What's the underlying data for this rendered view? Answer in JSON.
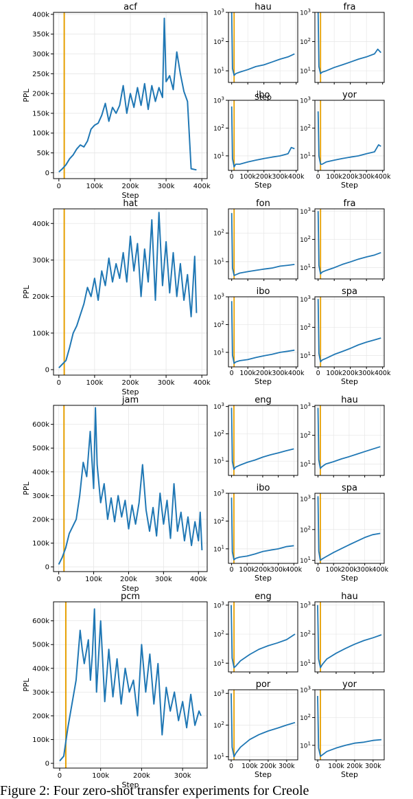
{
  "colors": {
    "line": "#1f77b4",
    "marker": "#e69f00",
    "grid": "#e6e6e6",
    "axis": "#000000"
  },
  "caption": "Figure 2: Four zero-shot transfer experiments for Creole",
  "groups": [
    {
      "main": {
        "title": "acf",
        "ylabel": "PPL",
        "xlabel": "Step",
        "xticks": [
          0,
          100000,
          200000,
          300000,
          400000
        ],
        "xticklabels": [
          "0",
          "100k",
          "200k",
          "300k",
          "400k"
        ],
        "yticks": [
          0,
          50000,
          100000,
          150000,
          200000,
          250000,
          300000,
          350000,
          400000
        ],
        "yticklabels": [
          "0",
          "50k",
          "100k",
          "150k",
          "200k",
          "250k",
          "300k",
          "350k",
          "400k"
        ]
      },
      "smalls": [
        {
          "title": "hau",
          "xlabel": "Step"
        },
        {
          "title": "fra",
          "xlabel": ""
        },
        {
          "title": "ibo",
          "xlabel": "Step"
        },
        {
          "title": "yor",
          "xlabel": "Step"
        }
      ]
    },
    {
      "main": {
        "title": "hat",
        "ylabel": "PPL",
        "xlabel": "Step",
        "xticks": [
          0,
          100000,
          200000,
          300000,
          400000
        ],
        "xticklabels": [
          "0",
          "100k",
          "200k",
          "300k",
          "400k"
        ],
        "yticks": [
          0,
          100000,
          200000,
          300000,
          400000
        ],
        "yticklabels": [
          "0",
          "100k",
          "200k",
          "300k",
          "400k"
        ]
      },
      "smalls": [
        {
          "title": "fon",
          "xlabel": ""
        },
        {
          "title": "fra",
          "xlabel": ""
        },
        {
          "title": "ibo",
          "xlabel": "Step"
        },
        {
          "title": "spa",
          "xlabel": "Step"
        }
      ]
    },
    {
      "main": {
        "title": "jam",
        "ylabel": "PPL",
        "xlabel": "Step",
        "xticks": [
          0,
          100000,
          200000,
          300000,
          400000
        ],
        "xticklabels": [
          "0",
          "100k",
          "200k",
          "300k",
          "400k"
        ],
        "yticks": [
          0,
          100000,
          200000,
          300000,
          400000,
          500000,
          600000
        ],
        "yticklabels": [
          "0",
          "100k",
          "200k",
          "300k",
          "400k",
          "500k",
          "600k"
        ]
      },
      "smalls": [
        {
          "title": "eng",
          "xlabel": ""
        },
        {
          "title": "hau",
          "xlabel": ""
        },
        {
          "title": "ibo",
          "xlabel": "Step"
        },
        {
          "title": "spa",
          "xlabel": "Step"
        }
      ]
    },
    {
      "main": {
        "title": "pcm",
        "ylabel": "PPL",
        "xlabel": "Step",
        "xticks": [
          0,
          100000,
          200000,
          300000
        ],
        "xticklabels": [
          "0",
          "100k",
          "200k",
          "300k"
        ],
        "yticks": [
          0,
          100000,
          200000,
          300000,
          400000,
          500000,
          600000
        ],
        "yticklabels": [
          "0",
          "100k",
          "200k",
          "300k",
          "400k",
          "500k",
          "600k"
        ]
      },
      "smalls": [
        {
          "title": "eng",
          "xlabel": ""
        },
        {
          "title": "hau",
          "xlabel": ""
        },
        {
          "title": "por",
          "xlabel": "Step"
        },
        {
          "title": "yor",
          "xlabel": "Step"
        }
      ]
    }
  ],
  "chart_data": [
    {
      "type": "line",
      "title": "acf",
      "xlabel": "Step",
      "ylabel": "PPL",
      "xlim": [
        -15000,
        415000
      ],
      "ylim": [
        -15000,
        405000
      ],
      "vline_x": 15000,
      "x": [
        0,
        10000,
        20000,
        30000,
        40000,
        50000,
        60000,
        70000,
        80000,
        90000,
        100000,
        110000,
        120000,
        130000,
        140000,
        150000,
        160000,
        170000,
        180000,
        190000,
        200000,
        210000,
        220000,
        230000,
        240000,
        250000,
        260000,
        270000,
        280000,
        290000,
        295000,
        300000,
        310000,
        320000,
        330000,
        340000,
        350000,
        360000,
        370000,
        385000
      ],
      "y": [
        2000,
        10000,
        20000,
        35000,
        45000,
        60000,
        70000,
        65000,
        80000,
        110000,
        120000,
        125000,
        145000,
        175000,
        130000,
        165000,
        150000,
        170000,
        220000,
        150000,
        200000,
        165000,
        215000,
        170000,
        225000,
        160000,
        220000,
        180000,
        215000,
        190000,
        390000,
        230000,
        245000,
        210000,
        305000,
        250000,
        205000,
        180000,
        10000,
        7000
      ]
    },
    {
      "type": "line",
      "title": "hau",
      "xlabel": "Step",
      "yscale": "log",
      "xlim": [
        -20000,
        410000
      ],
      "ylim": [
        4,
        1000
      ],
      "vline_x": 15000,
      "x": [
        0,
        5000,
        15000,
        25000,
        50000,
        100000,
        150000,
        200000,
        250000,
        300000,
        350000,
        390000
      ],
      "y": [
        1000,
        12,
        7,
        8,
        9,
        11,
        14,
        16,
        20,
        25,
        30,
        38
      ]
    },
    {
      "type": "line",
      "title": "fra",
      "yscale": "log",
      "xlim": [
        -20000,
        410000
      ],
      "ylim": [
        4,
        1000
      ],
      "vline_x": 15000,
      "x": [
        0,
        5000,
        15000,
        25000,
        50000,
        100000,
        150000,
        200000,
        250000,
        300000,
        350000,
        370000,
        390000
      ],
      "y": [
        1000,
        14,
        8,
        9,
        10,
        13,
        16,
        20,
        25,
        30,
        38,
        55,
        42
      ]
    },
    {
      "type": "line",
      "title": "ibo",
      "xlabel": "Step",
      "yscale": "log",
      "xlim": [
        -20000,
        410000
      ],
      "ylim": [
        3,
        1000
      ],
      "vline_x": 15000,
      "x": [
        0,
        5000,
        15000,
        25000,
        50000,
        100000,
        150000,
        200000,
        250000,
        300000,
        350000,
        370000,
        390000
      ],
      "y": [
        600,
        8,
        4,
        5,
        5,
        6,
        7,
        8,
        9,
        10,
        12,
        20,
        18
      ]
    },
    {
      "type": "line",
      "title": "yor",
      "xlabel": "Step",
      "yscale": "log",
      "xlim": [
        -20000,
        410000
      ],
      "ylim": [
        3,
        1000
      ],
      "vline_x": 15000,
      "x": [
        0,
        5000,
        15000,
        25000,
        50000,
        100000,
        150000,
        200000,
        250000,
        300000,
        350000,
        375000,
        390000
      ],
      "y": [
        400,
        10,
        5,
        5,
        6,
        7,
        8,
        9,
        10,
        12,
        14,
        25,
        22
      ]
    },
    {
      "type": "line",
      "title": "hat",
      "xlabel": "Step",
      "ylabel": "PPL",
      "xlim": [
        -15000,
        415000
      ],
      "ylim": [
        -15000,
        440000
      ],
      "vline_x": 15000,
      "x": [
        0,
        10000,
        20000,
        30000,
        40000,
        50000,
        60000,
        70000,
        80000,
        90000,
        100000,
        110000,
        120000,
        130000,
        140000,
        150000,
        160000,
        170000,
        180000,
        190000,
        200000,
        210000,
        220000,
        230000,
        240000,
        250000,
        260000,
        270000,
        280000,
        290000,
        300000,
        310000,
        320000,
        330000,
        340000,
        350000,
        360000,
        370000,
        380000,
        385000
      ],
      "y": [
        5000,
        15000,
        25000,
        60000,
        100000,
        120000,
        150000,
        180000,
        225000,
        200000,
        250000,
        190000,
        270000,
        230000,
        305000,
        240000,
        290000,
        250000,
        320000,
        240000,
        365000,
        270000,
        345000,
        200000,
        330000,
        240000,
        410000,
        190000,
        430000,
        230000,
        350000,
        210000,
        320000,
        200000,
        290000,
        190000,
        260000,
        145000,
        310000,
        155000
      ]
    },
    {
      "type": "line",
      "title": "fon",
      "yscale": "log",
      "xlim": [
        -20000,
        410000
      ],
      "ylim": [
        2.5,
        700
      ],
      "vline_x": 15000,
      "x": [
        0,
        5000,
        15000,
        25000,
        50000,
        100000,
        150000,
        200000,
        250000,
        300000,
        350000,
        390000
      ],
      "y": [
        500,
        6,
        3.3,
        3.5,
        4,
        4.5,
        5,
        5.5,
        6,
        7,
        7.5,
        8
      ]
    },
    {
      "type": "line",
      "title": "fra",
      "yscale": "log",
      "xlim": [
        -20000,
        410000
      ],
      "ylim": [
        4,
        1200
      ],
      "vline_x": 15000,
      "x": [
        0,
        5000,
        15000,
        25000,
        50000,
        100000,
        150000,
        200000,
        250000,
        300000,
        350000,
        390000
      ],
      "y": [
        1000,
        12,
        6,
        7,
        8,
        10,
        13,
        16,
        20,
        24,
        28,
        34
      ]
    },
    {
      "type": "line",
      "title": "ibo",
      "xlabel": "Step",
      "yscale": "log",
      "xlim": [
        -20000,
        410000
      ],
      "ylim": [
        3,
        1000
      ],
      "vline_x": 15000,
      "x": [
        0,
        5000,
        15000,
        25000,
        50000,
        100000,
        150000,
        200000,
        250000,
        300000,
        350000,
        390000
      ],
      "y": [
        700,
        8,
        4,
        4.5,
        5,
        5.5,
        6.5,
        7.5,
        8.5,
        10,
        11,
        12
      ]
    },
    {
      "type": "line",
      "title": "spa",
      "xlabel": "Step",
      "yscale": "log",
      "xlim": [
        -20000,
        410000
      ],
      "ylim": [
        4,
        1200
      ],
      "vline_x": 15000,
      "x": [
        0,
        5000,
        15000,
        25000,
        50000,
        100000,
        150000,
        200000,
        250000,
        300000,
        350000,
        390000
      ],
      "y": [
        1000,
        12,
        6,
        7,
        8,
        11,
        14,
        18,
        24,
        30,
        36,
        42
      ]
    },
    {
      "type": "line",
      "title": "jam",
      "xlabel": "Step",
      "ylabel": "PPL",
      "xlim": [
        -15000,
        425000
      ],
      "ylim": [
        -20000,
        680000
      ],
      "vline_x": 15000,
      "x": [
        0,
        10000,
        20000,
        30000,
        40000,
        50000,
        60000,
        70000,
        80000,
        90000,
        100000,
        105000,
        110000,
        120000,
        130000,
        140000,
        150000,
        160000,
        170000,
        180000,
        190000,
        200000,
        210000,
        220000,
        230000,
        240000,
        250000,
        260000,
        270000,
        280000,
        290000,
        300000,
        310000,
        320000,
        330000,
        340000,
        350000,
        360000,
        370000,
        380000,
        390000,
        400000,
        405000,
        410000
      ],
      "y": [
        10000,
        40000,
        80000,
        140000,
        170000,
        200000,
        300000,
        440000,
        380000,
        570000,
        330000,
        670000,
        430000,
        270000,
        350000,
        200000,
        290000,
        190000,
        300000,
        210000,
        280000,
        160000,
        260000,
        180000,
        270000,
        430000,
        240000,
        150000,
        250000,
        130000,
        310000,
        180000,
        280000,
        120000,
        350000,
        150000,
        230000,
        110000,
        210000,
        90000,
        190000,
        110000,
        230000,
        70000
      ]
    },
    {
      "type": "line",
      "title": "eng",
      "yscale": "log",
      "xlim": [
        -20000,
        425000
      ],
      "ylim": [
        3,
        1100
      ],
      "vline_x": 15000,
      "x": [
        0,
        5000,
        15000,
        25000,
        50000,
        100000,
        150000,
        200000,
        250000,
        300000,
        350000,
        400000
      ],
      "y": [
        900,
        10,
        5,
        6,
        7,
        9,
        11,
        14,
        17,
        20,
        24,
        28
      ]
    },
    {
      "type": "line",
      "title": "hau",
      "yscale": "log",
      "xlim": [
        -20000,
        425000
      ],
      "ylim": [
        4,
        1100
      ],
      "vline_x": 15000,
      "x": [
        0,
        5000,
        15000,
        25000,
        50000,
        100000,
        150000,
        200000,
        250000,
        300000,
        350000,
        400000
      ],
      "y": [
        900,
        14,
        7,
        8,
        10,
        12,
        15,
        18,
        22,
        27,
        33,
        40
      ]
    },
    {
      "type": "line",
      "title": "ibo",
      "xlabel": "Step",
      "yscale": "log",
      "xlim": [
        -20000,
        425000
      ],
      "ylim": [
        3,
        1000
      ],
      "vline_x": 15000,
      "x": [
        0,
        5000,
        15000,
        25000,
        50000,
        100000,
        150000,
        200000,
        250000,
        300000,
        350000,
        400000
      ],
      "y": [
        700,
        8,
        4,
        4.5,
        5,
        5.5,
        6.5,
        8,
        9,
        10,
        12,
        13
      ]
    },
    {
      "type": "line",
      "title": "spa",
      "xlabel": "Step",
      "yscale": "log",
      "xlim": [
        -20000,
        425000
      ],
      "ylim": [
        8,
        1500
      ],
      "vline_x": 15000,
      "x": [
        0,
        5000,
        15000,
        25000,
        50000,
        100000,
        150000,
        200000,
        250000,
        300000,
        350000,
        400000
      ],
      "y": [
        1200,
        20,
        10,
        11,
        13,
        18,
        24,
        32,
        42,
        55,
        68,
        75
      ]
    },
    {
      "type": "line",
      "title": "pcm",
      "xlabel": "Step",
      "ylabel": "PPL",
      "xlim": [
        -15000,
        360000
      ],
      "ylim": [
        -20000,
        680000
      ],
      "vline_x": 15000,
      "x": [
        0,
        10000,
        20000,
        30000,
        40000,
        50000,
        55000,
        60000,
        70000,
        75000,
        80000,
        85000,
        90000,
        100000,
        110000,
        120000,
        130000,
        140000,
        150000,
        160000,
        170000,
        180000,
        190000,
        200000,
        210000,
        220000,
        230000,
        240000,
        250000,
        260000,
        270000,
        280000,
        290000,
        300000,
        310000,
        320000,
        330000,
        340000,
        345000
      ],
      "y": [
        10000,
        30000,
        150000,
        250000,
        350000,
        560000,
        480000,
        420000,
        520000,
        350000,
        460000,
        650000,
        300000,
        600000,
        260000,
        480000,
        280000,
        440000,
        250000,
        400000,
        300000,
        350000,
        200000,
        500000,
        300000,
        460000,
        250000,
        420000,
        120000,
        320000,
        220000,
        300000,
        180000,
        260000,
        150000,
        290000,
        160000,
        220000,
        200000
      ]
    },
    {
      "type": "line",
      "title": "eng",
      "yscale": "log",
      "xlim": [
        -15000,
        360000
      ],
      "ylim": [
        5,
        1300
      ],
      "vline_x": 15000,
      "x": [
        0,
        5000,
        15000,
        25000,
        50000,
        100000,
        150000,
        200000,
        250000,
        300000,
        345000
      ],
      "y": [
        1000,
        15,
        7,
        8,
        12,
        20,
        30,
        40,
        50,
        65,
        100
      ]
    },
    {
      "type": "line",
      "title": "hau",
      "yscale": "log",
      "xlim": [
        -15000,
        360000
      ],
      "ylim": [
        5,
        1300
      ],
      "vline_x": 15000,
      "x": [
        0,
        5000,
        15000,
        25000,
        50000,
        100000,
        150000,
        200000,
        250000,
        300000,
        345000
      ],
      "y": [
        1000,
        14,
        7,
        9,
        14,
        22,
        32,
        45,
        60,
        75,
        95
      ]
    },
    {
      "type": "line",
      "title": "por",
      "xlabel": "Step",
      "yscale": "log",
      "xlim": [
        -15000,
        360000
      ],
      "ylim": [
        8,
        1300
      ],
      "vline_x": 15000,
      "x": [
        0,
        5000,
        15000,
        25000,
        50000,
        100000,
        150000,
        200000,
        250000,
        300000,
        345000
      ],
      "y": [
        1000,
        20,
        10,
        13,
        20,
        35,
        50,
        65,
        80,
        100,
        120
      ]
    },
    {
      "type": "line",
      "title": "yor",
      "xlabel": "Step",
      "yscale": "log",
      "xlim": [
        -15000,
        360000
      ],
      "ylim": [
        3,
        1000
      ],
      "vline_x": 15000,
      "x": [
        0,
        5000,
        15000,
        25000,
        50000,
        100000,
        150000,
        200000,
        250000,
        300000,
        345000
      ],
      "y": [
        600,
        8,
        4,
        4.5,
        6,
        8,
        10,
        12,
        13,
        15,
        16
      ]
    }
  ]
}
